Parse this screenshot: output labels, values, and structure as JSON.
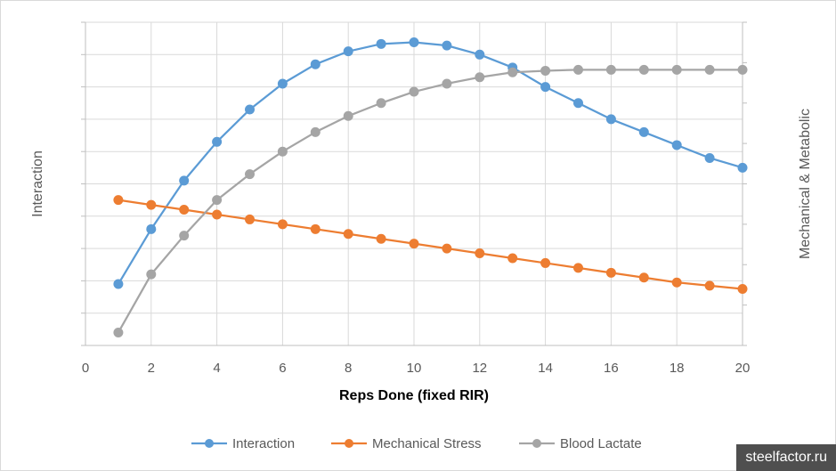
{
  "chart_data": {
    "type": "line",
    "title": "",
    "xlabel": "Reps Done (fixed RIR)",
    "ylabel_left": "Interaction",
    "ylabel_right": "Mechanical & Metabolic",
    "xlim": [
      0,
      20
    ],
    "x_ticks": [
      0,
      2,
      4,
      6,
      8,
      10,
      12,
      14,
      16,
      18,
      20
    ],
    "x_tick_labels": [
      "0",
      "2",
      "4",
      "6",
      "8",
      "10",
      "12",
      "14",
      "16",
      "18",
      "20"
    ],
    "ylim": [
      0,
      10
    ],
    "grid": true,
    "legend_position": "bottom",
    "x": [
      1,
      2,
      3,
      4,
      5,
      6,
      7,
      8,
      9,
      10,
      11,
      12,
      13,
      14,
      15,
      16,
      17,
      18,
      19,
      20
    ],
    "series": [
      {
        "name": "Interaction",
        "color": "#5b9bd5",
        "values": [
          1.9,
          3.6,
          5.1,
          6.3,
          7.3,
          8.1,
          8.7,
          9.1,
          9.33,
          9.38,
          9.28,
          9.0,
          8.6,
          8.0,
          7.5,
          7.0,
          6.6,
          6.2,
          5.8,
          5.5
        ]
      },
      {
        "name": "Mechanical Stress",
        "color": "#ed7d31",
        "values": [
          4.5,
          4.35,
          4.2,
          4.05,
          3.9,
          3.75,
          3.6,
          3.45,
          3.3,
          3.15,
          3.0,
          2.85,
          2.7,
          2.55,
          2.4,
          2.25,
          2.1,
          1.95,
          1.85,
          1.75
        ]
      },
      {
        "name": "Blood Lactate",
        "color": "#a5a5a5",
        "values": [
          0.4,
          2.2,
          3.4,
          4.5,
          5.3,
          6.0,
          6.6,
          7.1,
          7.5,
          7.85,
          8.1,
          8.3,
          8.45,
          8.5,
          8.53,
          8.53,
          8.53,
          8.53,
          8.53,
          8.53
        ]
      }
    ]
  },
  "watermark": "steelfactor.ru"
}
